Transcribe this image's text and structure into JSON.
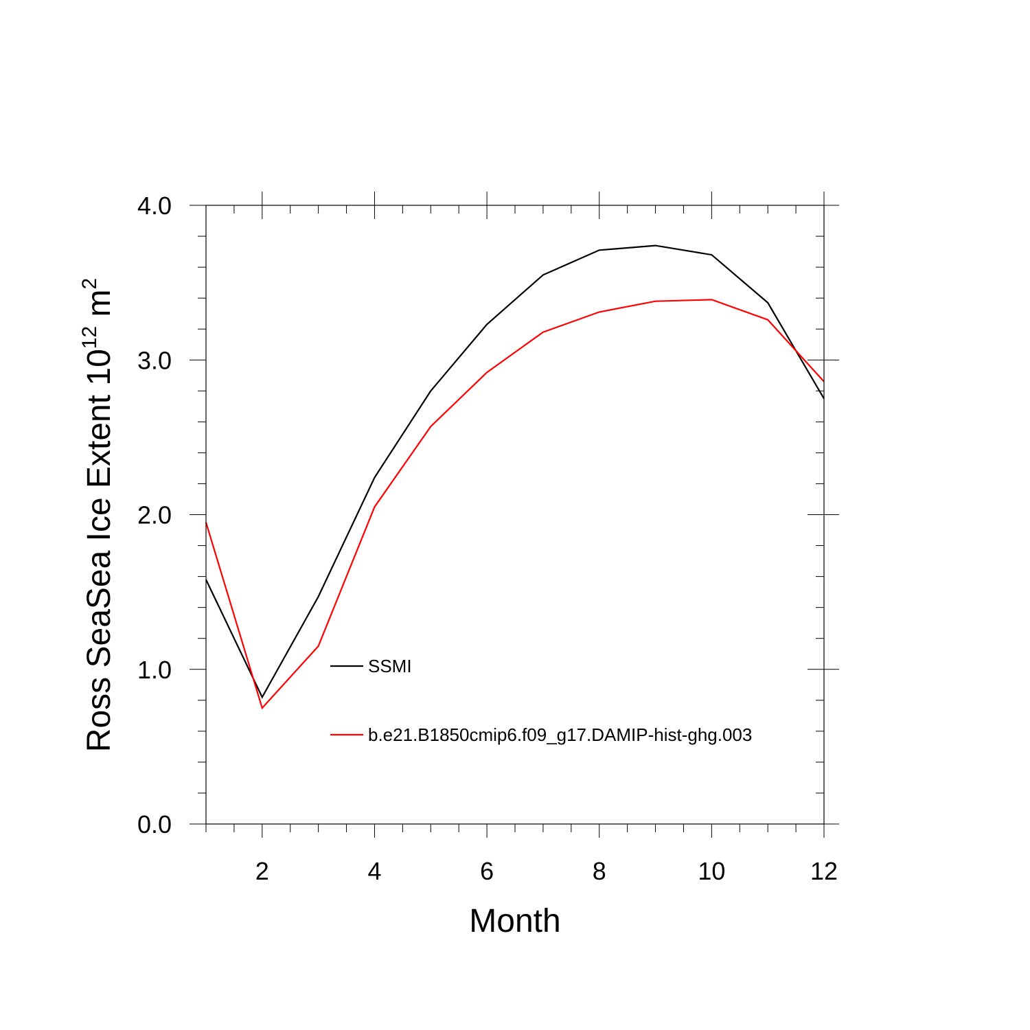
{
  "chart_data": {
    "type": "line",
    "xlabel": "Month",
    "ylabel": {
      "main": "Ross SeaSea Ice Extent 10",
      "exponent": "12",
      "unit": " m",
      "unit_exponent": "2"
    },
    "xlim": [
      1,
      12
    ],
    "ylim": [
      0,
      4
    ],
    "x_ticks": [
      2,
      4,
      6,
      8,
      10,
      12
    ],
    "x_tick_labels": [
      "2",
      "4",
      "6",
      "8",
      "10",
      "12"
    ],
    "y_ticks": [
      0,
      1,
      2,
      3,
      4
    ],
    "y_tick_labels": [
      "0.0",
      "1.0",
      "2.0",
      "3.0",
      "4.0"
    ],
    "grid": false,
    "legend_position": "center",
    "x": [
      1,
      2,
      3,
      4,
      5,
      6,
      7,
      8,
      9,
      10,
      11,
      12
    ],
    "series": [
      {
        "name": "SSMI",
        "color": "#000000",
        "values": [
          1.58,
          0.82,
          1.47,
          2.24,
          2.8,
          3.23,
          3.55,
          3.71,
          3.74,
          3.68,
          3.37,
          2.75
        ]
      },
      {
        "name": "b.e21.B1850cmip6.f09_g17.DAMIP-hist-ghg.003",
        "color": "#ff0000",
        "values": [
          1.95,
          0.75,
          1.15,
          2.05,
          2.57,
          2.92,
          3.18,
          3.31,
          3.38,
          3.39,
          3.26,
          2.86
        ]
      }
    ]
  }
}
